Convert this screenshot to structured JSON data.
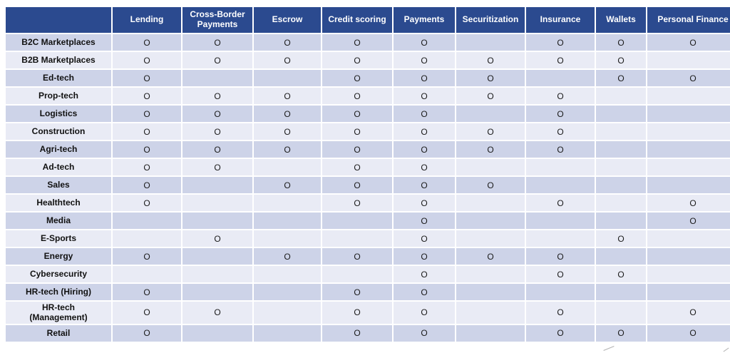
{
  "colors": {
    "header_bg": "#2B4A8F",
    "header_text": "#FFFFFF",
    "row_odd": "#CDD3E8",
    "row_even": "#E9EBF5",
    "marker_color": "#1A1A1A"
  },
  "chart_data": {
    "type": "table",
    "marker": "O",
    "columns": [
      "Lending",
      "Cross-Border Payments",
      "Escrow",
      "Credit scoring",
      "Payments",
      "Securitization",
      "Insurance",
      "Wallets",
      "Personal Finance"
    ],
    "rows": [
      {
        "label": "B2C Marketplaces",
        "cells": [
          1,
          1,
          1,
          1,
          1,
          0,
          1,
          1,
          1
        ]
      },
      {
        "label": "B2B Marketplaces",
        "cells": [
          1,
          1,
          1,
          1,
          1,
          1,
          1,
          1,
          0
        ]
      },
      {
        "label": "Ed-tech",
        "cells": [
          1,
          0,
          0,
          1,
          1,
          1,
          0,
          1,
          1
        ]
      },
      {
        "label": "Prop-tech",
        "cells": [
          1,
          1,
          1,
          1,
          1,
          1,
          1,
          0,
          0
        ]
      },
      {
        "label": "Logistics",
        "cells": [
          1,
          1,
          1,
          1,
          1,
          0,
          1,
          0,
          0
        ]
      },
      {
        "label": "Construction",
        "cells": [
          1,
          1,
          1,
          1,
          1,
          1,
          1,
          0,
          0
        ]
      },
      {
        "label": "Agri-tech",
        "cells": [
          1,
          1,
          1,
          1,
          1,
          1,
          1,
          0,
          0
        ]
      },
      {
        "label": "Ad-tech",
        "cells": [
          1,
          1,
          0,
          1,
          1,
          0,
          0,
          0,
          0
        ]
      },
      {
        "label": "Sales",
        "cells": [
          1,
          0,
          1,
          1,
          1,
          1,
          0,
          0,
          0
        ]
      },
      {
        "label": "Healthtech",
        "cells": [
          1,
          0,
          0,
          1,
          1,
          0,
          1,
          0,
          1
        ]
      },
      {
        "label": "Media",
        "cells": [
          0,
          0,
          0,
          0,
          1,
          0,
          0,
          0,
          1
        ]
      },
      {
        "label": "E-Sports",
        "cells": [
          0,
          1,
          0,
          0,
          1,
          0,
          0,
          1,
          0
        ]
      },
      {
        "label": "Energy",
        "cells": [
          1,
          0,
          1,
          1,
          1,
          1,
          1,
          0,
          0
        ]
      },
      {
        "label": "Cybersecurity",
        "cells": [
          0,
          0,
          0,
          0,
          1,
          0,
          1,
          1,
          0
        ]
      },
      {
        "label": "HR-tech (Hiring)",
        "cells": [
          1,
          0,
          0,
          1,
          1,
          0,
          0,
          0,
          0
        ]
      },
      {
        "label": "HR-tech\n(Management)",
        "cells": [
          1,
          1,
          0,
          1,
          1,
          0,
          1,
          0,
          1
        ]
      },
      {
        "label": "Retail",
        "cells": [
          1,
          0,
          0,
          1,
          1,
          0,
          1,
          1,
          1
        ]
      }
    ]
  }
}
